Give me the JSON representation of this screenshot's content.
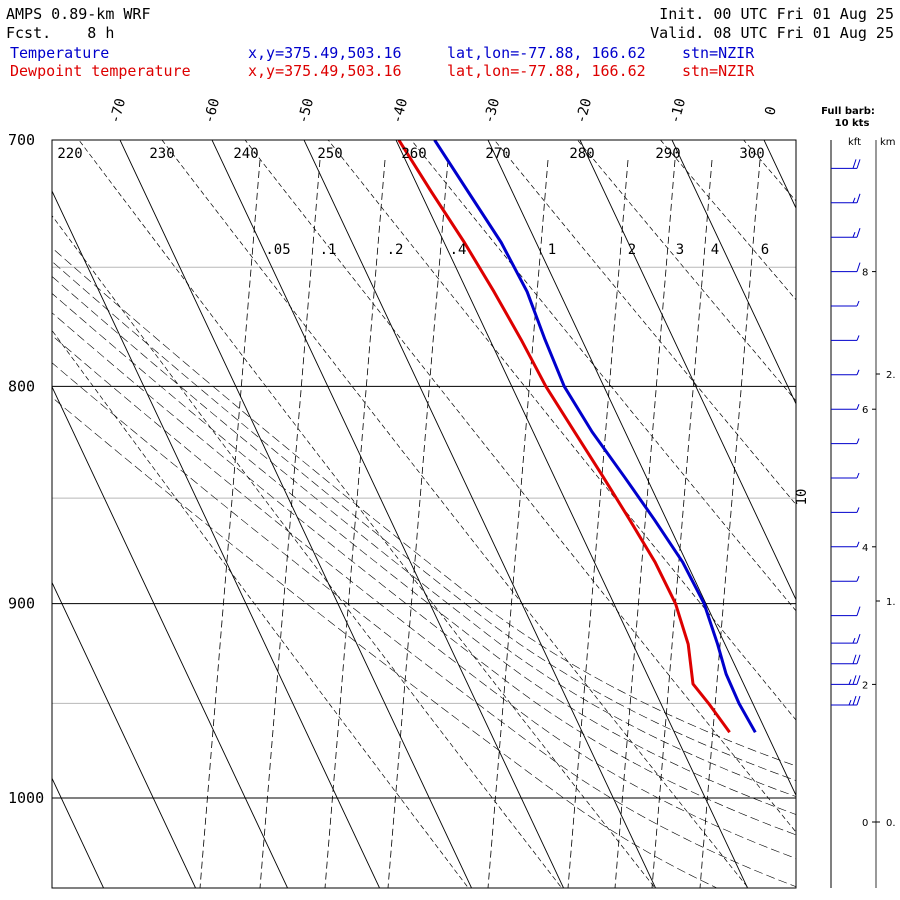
{
  "header": {
    "model": "AMPS 0.89-km WRF",
    "fcst_label": "Fcst.",
    "fcst_value": "8 h",
    "init": "Init. 00 UTC Fri 01 Aug 25",
    "valid": "Valid. 08 UTC Fri 01 Aug 25"
  },
  "legend": [
    {
      "name": "Temperature",
      "color": "#0000cc",
      "xy": "x,y=375.49,503.16",
      "latlon": "lat,lon=-77.88, 166.62",
      "stn": "stn=NZIR"
    },
    {
      "name": "Dewpoint temperature",
      "color": "#dd0000",
      "xy": "x,y=375.49,503.16",
      "latlon": "lat,lon=-77.88, 166.62",
      "stn": "stn=NZIR"
    }
  ],
  "wind_panel": {
    "title_line1": "Full barb:",
    "title_line2": "10 kts",
    "kft_label": "kft",
    "km_label": "km",
    "kft_ticks": [
      "8",
      "6",
      "4",
      "2",
      "0"
    ],
    "km_ticks": [
      "2.",
      "1.",
      "0."
    ]
  },
  "chart_data": {
    "type": "skew-t",
    "pressure_axis": {
      "range": [
        1040,
        700
      ],
      "scale": "log",
      "ticks": [
        700,
        800,
        900,
        1000
      ]
    },
    "isotherm_labels": [
      "-70",
      "-60",
      "-50",
      "-40",
      "-30",
      "-20",
      "-10",
      "0",
      "10"
    ],
    "dry_adiabat_labels": [
      "220",
      "230",
      "240",
      "250",
      "260",
      "270",
      "280",
      "290",
      "300"
    ],
    "mixing_ratio_labels": [
      ".05",
      ".1",
      ".2",
      ".4",
      "1",
      "2",
      "3",
      "4",
      "6"
    ],
    "series": [
      {
        "name": "Temperature",
        "color": "#0000cc",
        "points": [
          {
            "p": 965,
            "t": -31.2
          },
          {
            "p": 950,
            "t": -31.5
          },
          {
            "p": 935,
            "t": -31.4
          },
          {
            "p": 920,
            "t": -30.8
          },
          {
            "p": 900,
            "t": -30.2
          },
          {
            "p": 880,
            "t": -30.4
          },
          {
            "p": 860,
            "t": -31.3
          },
          {
            "p": 840,
            "t": -32.4
          },
          {
            "p": 820,
            "t": -33.6
          },
          {
            "p": 800,
            "t": -34.3
          },
          {
            "p": 780,
            "t": -34.0
          },
          {
            "p": 760,
            "t": -33.5
          },
          {
            "p": 740,
            "t": -33.8
          },
          {
            "p": 720,
            "t": -34.8
          },
          {
            "p": 700,
            "t": -35.8
          }
        ]
      },
      {
        "name": "Dewpoint temperature",
        "color": "#dd0000",
        "points": [
          {
            "p": 965,
            "t": -34.0
          },
          {
            "p": 950,
            "t": -34.8
          },
          {
            "p": 940,
            "t": -35.5
          },
          {
            "p": 920,
            "t": -34.0
          },
          {
            "p": 900,
            "t": -33.3
          },
          {
            "p": 880,
            "t": -33.4
          },
          {
            "p": 860,
            "t": -34.0
          },
          {
            "p": 840,
            "t": -34.7
          },
          {
            "p": 820,
            "t": -35.5
          },
          {
            "p": 800,
            "t": -36.3
          },
          {
            "p": 780,
            "t": -36.6
          },
          {
            "p": 760,
            "t": -37.1
          },
          {
            "p": 740,
            "t": -37.8
          },
          {
            "p": 720,
            "t": -38.8
          },
          {
            "p": 700,
            "t": -39.7
          }
        ]
      }
    ],
    "wind_barbs": [
      {
        "height_kft": 9.5,
        "speed_kt": 20
      },
      {
        "height_kft": 9.0,
        "speed_kt": 15
      },
      {
        "height_kft": 8.5,
        "speed_kt": 15
      },
      {
        "height_kft": 8.0,
        "speed_kt": 10
      },
      {
        "height_kft": 7.5,
        "speed_kt": 5
      },
      {
        "height_kft": 7.0,
        "speed_kt": 5
      },
      {
        "height_kft": 6.5,
        "speed_kt": 5
      },
      {
        "height_kft": 6.0,
        "speed_kt": 5
      },
      {
        "height_kft": 5.5,
        "speed_kt": 5
      },
      {
        "height_kft": 5.0,
        "speed_kt": 5
      },
      {
        "height_kft": 4.5,
        "speed_kt": 5
      },
      {
        "height_kft": 4.0,
        "speed_kt": 5
      },
      {
        "height_kft": 3.5,
        "speed_kt": 5
      },
      {
        "height_kft": 3.0,
        "speed_kt": 10
      },
      {
        "height_kft": 2.6,
        "speed_kt": 15
      },
      {
        "height_kft": 2.3,
        "speed_kt": 20
      },
      {
        "height_kft": 2.0,
        "speed_kt": 25
      },
      {
        "height_kft": 1.7,
        "speed_kt": 25
      }
    ],
    "grid": true
  }
}
